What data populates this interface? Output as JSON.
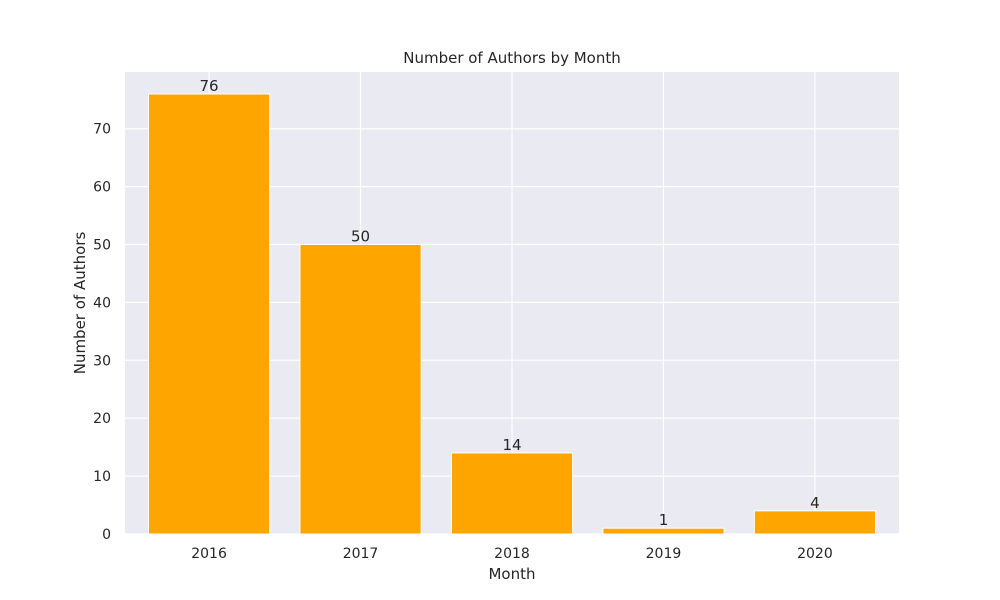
{
  "chart_data": {
    "type": "bar",
    "title": "Number of Authors by Month",
    "xlabel": "Month",
    "ylabel": "Number of Authors",
    "categories": [
      "2016",
      "2017",
      "2018",
      "2019",
      "2020"
    ],
    "values": [
      76,
      50,
      14,
      1,
      4
    ],
    "data_labels": [
      "76",
      "50",
      "14",
      "1",
      "4"
    ],
    "ylim": [
      0,
      79.8
    ],
    "yticks": [
      0,
      10,
      20,
      30,
      40,
      50,
      60,
      70
    ],
    "grid": true,
    "bar_color": "#FFA500",
    "plot_background": "#EAEAF2",
    "grid_color": "#FFFFFF",
    "text_color": "#262626"
  }
}
